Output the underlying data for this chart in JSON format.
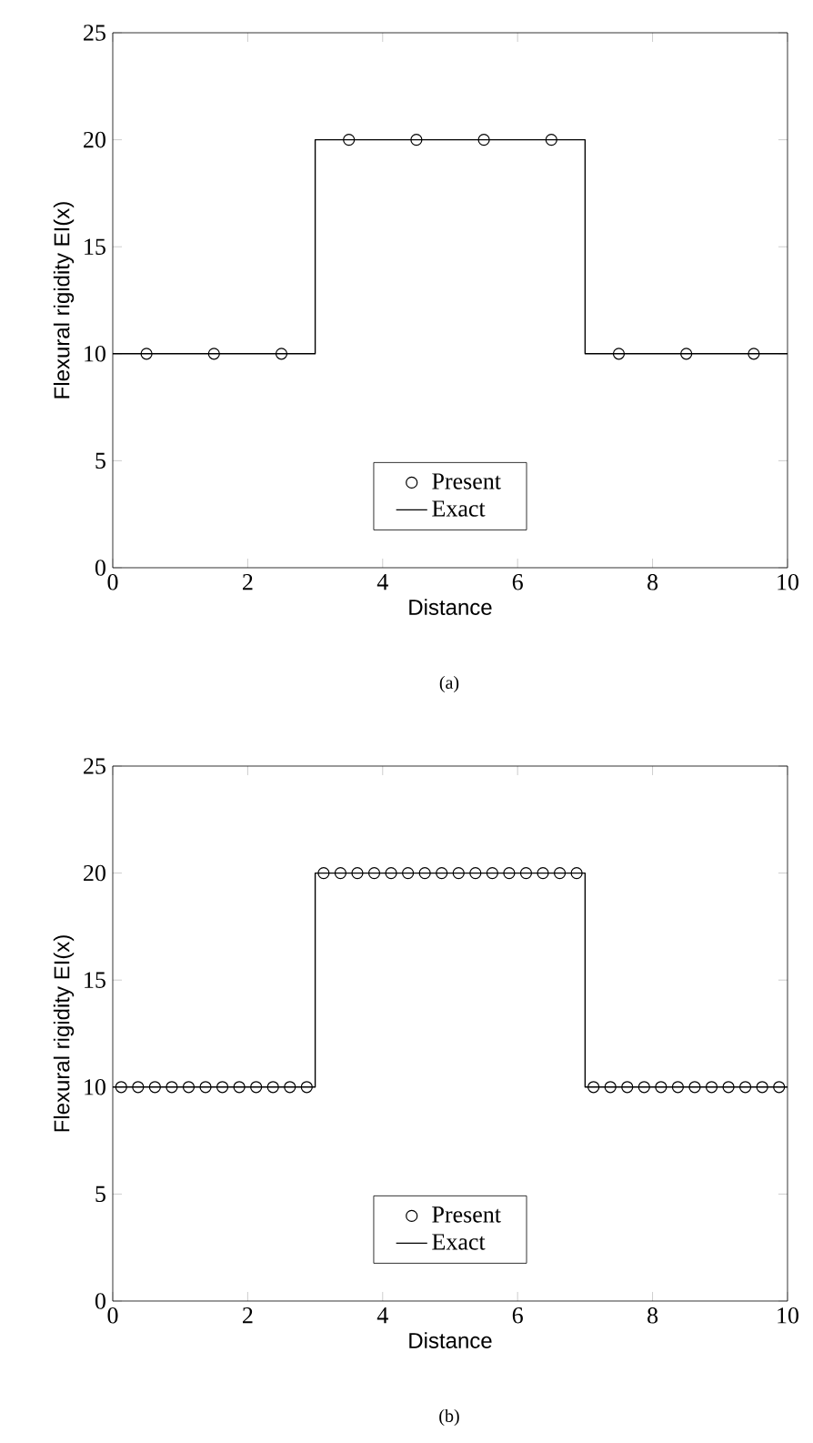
{
  "chart_data": [
    {
      "type": "line",
      "xlabel": "Distance",
      "ylabel": "Flexural rigidity EI(x)",
      "xlim": [
        0,
        10
      ],
      "ylim": [
        0,
        25
      ],
      "xticks": [
        0,
        2,
        4,
        6,
        8,
        10
      ],
      "yticks": [
        0,
        5,
        10,
        15,
        20,
        25
      ],
      "legend": "bottom",
      "annotations": [
        "(a)"
      ],
      "series": [
        {
          "name": "Present",
          "type": "scatter",
          "marker": "circle",
          "color": "#000000",
          "x": [
            0.5,
            1.5,
            2.5,
            3.5,
            4.5,
            5.5,
            6.5,
            7.5,
            8.5,
            9.5
          ],
          "values": [
            10,
            10,
            10,
            20,
            20,
            20,
            20,
            10,
            10,
            10
          ]
        },
        {
          "name": "Exact",
          "type": "line",
          "color": "#000000",
          "x": [
            0,
            3,
            3,
            7,
            7,
            10
          ],
          "values": [
            10,
            10,
            20,
            20,
            10,
            10
          ]
        }
      ]
    },
    {
      "type": "line",
      "xlabel": "Distance",
      "ylabel": "Flexural rigidity EI(x)",
      "xlim": [
        0,
        10
      ],
      "ylim": [
        0,
        25
      ],
      "xticks": [
        0,
        2,
        4,
        6,
        8,
        10
      ],
      "yticks": [
        0,
        5,
        10,
        15,
        20,
        25
      ],
      "legend": "bottom",
      "annotations": [
        "(b)"
      ],
      "series": [
        {
          "name": "Present",
          "type": "scatter",
          "marker": "circle",
          "color": "#000000",
          "x": [
            0.125,
            0.375,
            0.625,
            0.875,
            1.125,
            1.375,
            1.625,
            1.875,
            2.125,
            2.375,
            2.625,
            2.875,
            3.125,
            3.375,
            3.625,
            3.875,
            4.125,
            4.375,
            4.625,
            4.875,
            5.125,
            5.375,
            5.625,
            5.875,
            6.125,
            6.375,
            6.625,
            6.875,
            7.125,
            7.375,
            7.625,
            7.875,
            8.125,
            8.375,
            8.625,
            8.875,
            9.125,
            9.375,
            9.625,
            9.875
          ],
          "values": [
            10,
            10,
            10,
            10,
            10,
            10,
            10,
            10,
            10,
            10,
            10,
            10,
            20,
            20,
            20,
            20,
            20,
            20,
            20,
            20,
            20,
            20,
            20,
            20,
            20,
            20,
            20,
            20,
            10,
            10,
            10,
            10,
            10,
            10,
            10,
            10,
            10,
            10,
            10,
            10
          ]
        },
        {
          "name": "Exact",
          "type": "line",
          "color": "#000000",
          "x": [
            0,
            3,
            3,
            7,
            7,
            10
          ],
          "values": [
            10,
            10,
            20,
            20,
            10,
            10
          ]
        }
      ]
    }
  ]
}
